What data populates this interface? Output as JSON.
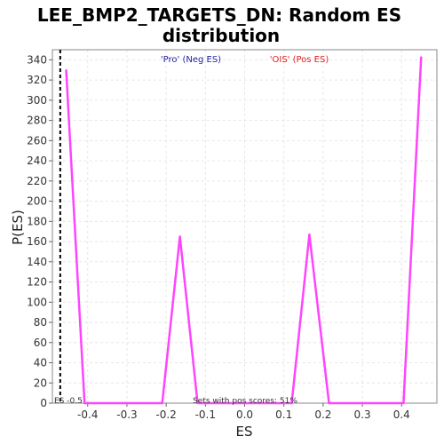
{
  "chart_data": {
    "type": "line",
    "title_line1": "LEE_BMP2_TARGETS_DN: Random ES",
    "title_line2": "distribution",
    "xlabel": "ES",
    "ylabel": "P(ES)",
    "xlim": [
      -0.49,
      0.49
    ],
    "ylim": [
      0,
      350
    ],
    "xticks": [
      -0.4,
      -0.3,
      -0.2,
      -0.1,
      0.0,
      0.1,
      0.2,
      0.3,
      0.4
    ],
    "xtick_labels": [
      "-0.4",
      "-0.3",
      "-0.2",
      "-0.1",
      "0.0",
      "0.1",
      "0.2",
      "0.3",
      "0.4"
    ],
    "yticks": [
      0,
      20,
      40,
      60,
      80,
      100,
      120,
      140,
      160,
      180,
      200,
      220,
      240,
      260,
      280,
      300,
      320,
      340
    ],
    "grid": true,
    "series": [
      {
        "color": "#ff44ff",
        "x": [
          -0.455,
          -0.408,
          -0.375,
          -0.33,
          -0.29,
          -0.25,
          -0.21,
          -0.165,
          -0.12,
          -0.08,
          -0.04,
          0.0,
          0.04,
          0.08,
          0.12,
          0.165,
          0.215,
          0.26,
          0.3,
          0.34,
          0.38,
          0.405,
          0.45
        ],
        "y": [
          330,
          0,
          0,
          0,
          0,
          0,
          0,
          165,
          0,
          0,
          0,
          0,
          0,
          0,
          0,
          167,
          0,
          0,
          0,
          0,
          0,
          0,
          343
        ]
      }
    ],
    "reference_line": {
      "x": -0.47,
      "style": "dashed",
      "color": "#000000"
    },
    "legend_neg": "'Pro' (Neg ES)",
    "legend_pos": "'OIS' (Pos ES)",
    "legend_neg_color": "#2222aa",
    "legend_pos_color": "#dd2222",
    "bottom_left_note": "ES -0.5",
    "bottom_center_note": "Sets with pos scores: 51%"
  }
}
